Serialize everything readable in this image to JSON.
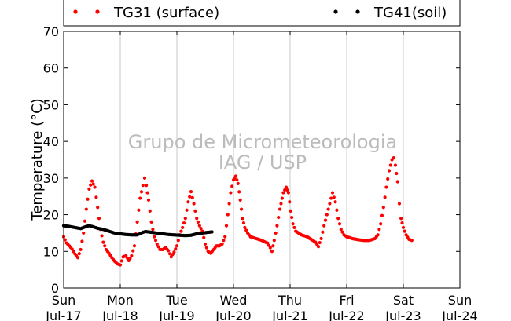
{
  "chart_data": {
    "type": "scatter",
    "ylabel": "Temperature (°C)",
    "ylim": [
      0,
      70
    ],
    "y_ticks": [
      0,
      10,
      20,
      30,
      40,
      50,
      60,
      70
    ],
    "xlim": [
      0,
      7
    ],
    "x_ticks": [
      {
        "day": "Sun",
        "date": "Jul-17"
      },
      {
        "day": "Mon",
        "date": "Jul-18"
      },
      {
        "day": "Tue",
        "date": "Jul-19"
      },
      {
        "day": "Wed",
        "date": "Jul-20"
      },
      {
        "day": "Thu",
        "date": "Jul-21"
      },
      {
        "day": "Fri",
        "date": "Jul-22"
      },
      {
        "day": "Sat",
        "date": "Jul-23"
      },
      {
        "day": "Sun",
        "date": "Jul-24"
      }
    ],
    "grid": "vertical",
    "legend_position": "top",
    "watermark": [
      "Grupo de Micrometeorologia",
      "IAG / USP"
    ],
    "series": [
      {
        "name": "TG31 (surface)",
        "color": "#ff0000",
        "points": [
          [
            0.0,
            14.0
          ],
          [
            0.05,
            12.3
          ],
          [
            0.1,
            11.5
          ],
          [
            0.15,
            10.6
          ],
          [
            0.2,
            9.3
          ],
          [
            0.25,
            8.3
          ],
          [
            0.3,
            10.5
          ],
          [
            0.35,
            15.0
          ],
          [
            0.4,
            21.5
          ],
          [
            0.45,
            27.0
          ],
          [
            0.5,
            29.2
          ],
          [
            0.55,
            27.5
          ],
          [
            0.6,
            22.0
          ],
          [
            0.65,
            16.0
          ],
          [
            0.7,
            12.5
          ],
          [
            0.75,
            10.5
          ],
          [
            0.8,
            9.5
          ],
          [
            0.85,
            8.3
          ],
          [
            0.9,
            7.3
          ],
          [
            0.95,
            6.6
          ],
          [
            1.0,
            6.3
          ],
          [
            1.05,
            8.5
          ],
          [
            1.1,
            8.8
          ],
          [
            1.15,
            7.5
          ],
          [
            1.2,
            8.8
          ],
          [
            1.25,
            11.5
          ],
          [
            1.3,
            18.0
          ],
          [
            1.35,
            24.5
          ],
          [
            1.4,
            28.0
          ],
          [
            1.43,
            30.0
          ],
          [
            1.46,
            28.0
          ],
          [
            1.5,
            24.0
          ],
          [
            1.55,
            18.0
          ],
          [
            1.6,
            14.0
          ],
          [
            1.65,
            12.0
          ],
          [
            1.7,
            10.5
          ],
          [
            1.75,
            10.5
          ],
          [
            1.8,
            11.0
          ],
          [
            1.85,
            10.2
          ],
          [
            1.9,
            8.5
          ],
          [
            1.95,
            9.8
          ],
          [
            2.0,
            11.5
          ],
          [
            2.05,
            14.5
          ],
          [
            2.1,
            16.5
          ],
          [
            2.15,
            19.0
          ],
          [
            2.2,
            23.5
          ],
          [
            2.25,
            26.3
          ],
          [
            2.3,
            23.0
          ],
          [
            2.35,
            19.0
          ],
          [
            2.4,
            17.0
          ],
          [
            2.45,
            15.5
          ],
          [
            2.5,
            12.0
          ],
          [
            2.55,
            10.0
          ],
          [
            2.6,
            9.5
          ],
          [
            2.65,
            10.5
          ],
          [
            2.7,
            11.5
          ],
          [
            2.75,
            11.5
          ],
          [
            2.8,
            12.0
          ],
          [
            2.85,
            14.0
          ],
          [
            2.9,
            20.0
          ],
          [
            2.95,
            26.0
          ],
          [
            3.0,
            29.5
          ],
          [
            3.04,
            30.5
          ],
          [
            3.08,
            28.5
          ],
          [
            3.12,
            24.0
          ],
          [
            3.16,
            19.0
          ],
          [
            3.2,
            16.5
          ],
          [
            3.25,
            15.0
          ],
          [
            3.3,
            14.0
          ],
          [
            3.4,
            13.5
          ],
          [
            3.5,
            13.0
          ],
          [
            3.55,
            12.6
          ],
          [
            3.6,
            12.3
          ],
          [
            3.65,
            11.0
          ],
          [
            3.68,
            10.0
          ],
          [
            3.72,
            13.0
          ],
          [
            3.77,
            17.0
          ],
          [
            3.82,
            21.5
          ],
          [
            3.88,
            26.0
          ],
          [
            3.93,
            27.5
          ],
          [
            3.97,
            26.0
          ],
          [
            4.01,
            21.0
          ],
          [
            4.05,
            17.5
          ],
          [
            4.1,
            15.5
          ],
          [
            4.2,
            14.5
          ],
          [
            4.3,
            14.0
          ],
          [
            4.4,
            13.0
          ],
          [
            4.45,
            12.5
          ],
          [
            4.5,
            11.3
          ],
          [
            4.55,
            13.5
          ],
          [
            4.6,
            17.0
          ],
          [
            4.65,
            20.0
          ],
          [
            4.7,
            23.0
          ],
          [
            4.75,
            26.0
          ],
          [
            4.8,
            23.5
          ],
          [
            4.85,
            19.0
          ],
          [
            4.9,
            16.0
          ],
          [
            4.95,
            14.5
          ],
          [
            5.0,
            14.0
          ],
          [
            5.1,
            13.5
          ],
          [
            5.2,
            13.2
          ],
          [
            5.3,
            13.0
          ],
          [
            5.4,
            13.0
          ],
          [
            5.5,
            13.5
          ],
          [
            5.55,
            14.5
          ],
          [
            5.6,
            17.5
          ],
          [
            5.65,
            22.0
          ],
          [
            5.7,
            27.5
          ],
          [
            5.75,
            32.0
          ],
          [
            5.8,
            35.0
          ],
          [
            5.83,
            35.5
          ],
          [
            5.86,
            33.5
          ],
          [
            5.9,
            29.0
          ],
          [
            5.93,
            23.0
          ],
          [
            5.96,
            19.0
          ],
          [
            6.0,
            16.5
          ],
          [
            6.05,
            14.5
          ],
          [
            6.1,
            13.3
          ],
          [
            6.15,
            13.0
          ]
        ]
      },
      {
        "name": "TG41(soil)",
        "color": "#000000",
        "points": [
          [
            0.0,
            17.0
          ],
          [
            0.1,
            16.8
          ],
          [
            0.2,
            16.5
          ],
          [
            0.3,
            16.2
          ],
          [
            0.4,
            16.8
          ],
          [
            0.45,
            17.0
          ],
          [
            0.5,
            16.8
          ],
          [
            0.6,
            16.3
          ],
          [
            0.7,
            16.0
          ],
          [
            0.8,
            15.5
          ],
          [
            0.9,
            15.0
          ],
          [
            1.0,
            14.8
          ],
          [
            1.1,
            14.6
          ],
          [
            1.2,
            14.5
          ],
          [
            1.3,
            14.5
          ],
          [
            1.4,
            15.2
          ],
          [
            1.45,
            15.4
          ],
          [
            1.55,
            15.2
          ],
          [
            1.65,
            15.0
          ],
          [
            1.75,
            14.8
          ],
          [
            1.85,
            14.6
          ],
          [
            1.95,
            14.5
          ],
          [
            2.05,
            14.4
          ],
          [
            2.15,
            14.3
          ],
          [
            2.25,
            14.4
          ],
          [
            2.35,
            14.8
          ],
          [
            2.45,
            15.0
          ],
          [
            2.55,
            15.2
          ],
          [
            2.62,
            15.3
          ]
        ]
      }
    ]
  }
}
